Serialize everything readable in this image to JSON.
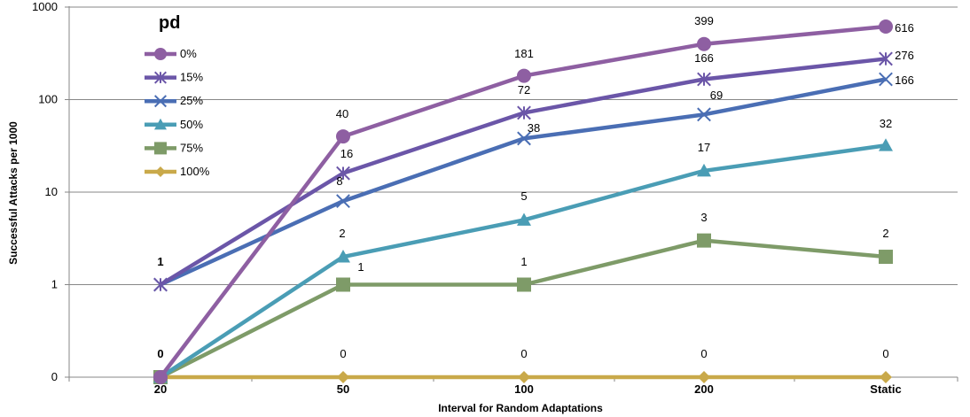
{
  "chart_data": {
    "type": "line",
    "legend_title": "pd",
    "legend_position": "top-left",
    "ylabel": "Successful Attacks per 1000",
    "xlabel": "Interval for Random Adaptations",
    "y_scale": "log",
    "y_ticks": [
      "1000",
      "100",
      "10",
      "1",
      "0"
    ],
    "categories": [
      "20",
      "50",
      "100",
      "200",
      "Static"
    ],
    "grid": "horizontal",
    "series": [
      {
        "name": "0%",
        "color": "#8E5FA2",
        "marker": "circle",
        "values": [
          0,
          40,
          181,
          399,
          616
        ],
        "labels": [
          "0",
          "40",
          "181",
          "399",
          "616"
        ]
      },
      {
        "name": "15%",
        "color": "#6B56A8",
        "marker": "star",
        "values": [
          1,
          16,
          72,
          166,
          276
        ],
        "labels": [
          "1",
          "16",
          "72",
          "166",
          "276"
        ]
      },
      {
        "name": "25%",
        "color": "#4A6EB4",
        "marker": "x",
        "values": [
          1,
          8,
          38,
          69,
          166
        ],
        "labels": [
          "",
          "8",
          "38",
          "69",
          "166"
        ]
      },
      {
        "name": "50%",
        "color": "#4A9DB5",
        "marker": "triangle",
        "values": [
          0,
          2,
          5,
          17,
          32
        ],
        "labels": [
          "",
          "2",
          "5",
          "17",
          "32"
        ]
      },
      {
        "name": "75%",
        "color": "#7E9B68",
        "marker": "square",
        "values": [
          0,
          1,
          1,
          3,
          2
        ],
        "labels": [
          "",
          "1",
          "1",
          "3",
          "2"
        ]
      },
      {
        "name": "100%",
        "color": "#C9A94A",
        "marker": "diamond",
        "values": [
          0,
          0,
          0,
          0,
          0
        ],
        "labels": [
          "",
          "0",
          "0",
          "0",
          "0"
        ]
      }
    ]
  }
}
